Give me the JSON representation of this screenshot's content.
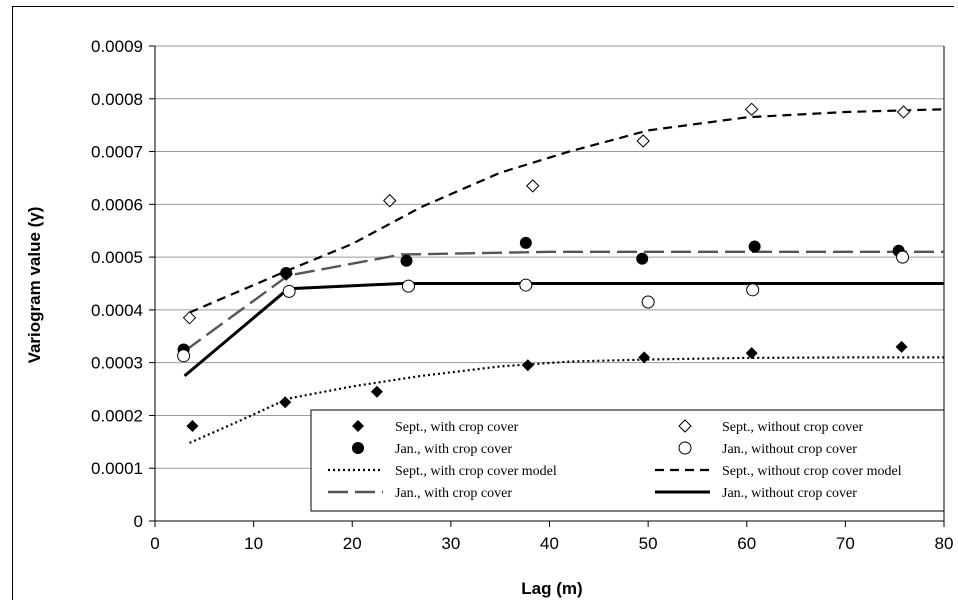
{
  "chart_data": {
    "type": "scatter",
    "title": "",
    "xlabel": "Lag (m)",
    "ylabel": "Variogram value (γ)",
    "xlim": [
      0,
      80
    ],
    "ylim": [
      0,
      0.0009
    ],
    "xticks": [
      "0",
      "10",
      "20",
      "30",
      "40",
      "50",
      "60",
      "70",
      "80"
    ],
    "yticks": [
      "0",
      "0.0001",
      "0.0002",
      "0.0003",
      "0.0004",
      "0.0005",
      "0.0006",
      "0.0007",
      "0.0008",
      "0.0009"
    ],
    "grid": "horizontal",
    "legend_position": "bottom-right",
    "series": [
      {
        "name": "Sept., with crop cover",
        "kind": "points",
        "marker": "filled-diamond",
        "x": [
          3.8,
          13.2,
          22.5,
          37.8,
          49.6,
          60.5,
          75.7
        ],
        "y": [
          0.00018,
          0.000225,
          0.000245,
          0.000295,
          0.00031,
          0.000318,
          0.00033
        ]
      },
      {
        "name": "Sept., without crop cover",
        "kind": "points",
        "marker": "open-diamond",
        "x": [
          3.5,
          13.3,
          23.8,
          38.3,
          49.5,
          60.5,
          75.9
        ],
        "y": [
          0.000385,
          0.000468,
          0.000607,
          0.000635,
          0.00072,
          0.00078,
          0.000775
        ]
      },
      {
        "name": "Jan., with crop cover",
        "kind": "points",
        "marker": "filled-circle",
        "x": [
          2.9,
          13.3,
          25.5,
          37.6,
          49.4,
          60.8,
          75.4
        ],
        "y": [
          0.000325,
          0.00047,
          0.000493,
          0.000527,
          0.000497,
          0.00052,
          0.000512
        ]
      },
      {
        "name": "Jan., without crop cover",
        "kind": "points",
        "marker": "open-circle",
        "x": [
          2.9,
          13.6,
          25.7,
          37.6,
          50,
          60.6,
          75.8
        ],
        "y": [
          0.000313,
          0.000435,
          0.000445,
          0.000447,
          0.000415,
          0.000438,
          0.0005
        ]
      },
      {
        "name": "Sept., with crop cover model",
        "kind": "line",
        "dash": "dotted",
        "x": [
          3.5,
          8,
          13.5,
          20,
          27,
          35,
          42,
          50,
          60,
          70,
          80
        ],
        "y": [
          0.000148,
          0.000185,
          0.000232,
          0.000255,
          0.000275,
          0.000293,
          0.000302,
          0.000306,
          0.000309,
          0.00031,
          0.00031
        ]
      },
      {
        "name": "Sept., without crop cover model",
        "kind": "line",
        "dash": "dashed",
        "x": [
          3.5,
          13.5,
          20,
          27,
          35,
          42,
          50,
          60,
          70,
          80
        ],
        "y": [
          0.000395,
          0.000475,
          0.000525,
          0.000595,
          0.00066,
          0.0007,
          0.00074,
          0.000765,
          0.000775,
          0.00078
        ]
      },
      {
        "name": "Jan., with crop cover",
        "kind": "line",
        "dash": "long-dash",
        "x": [
          3,
          13.5,
          25,
          40,
          80
        ],
        "y": [
          0.000322,
          0.000465,
          0.000505,
          0.00051,
          0.00051
        ]
      },
      {
        "name": "Jan., without crop cover",
        "kind": "line",
        "dash": "solid",
        "x": [
          3,
          13.5,
          25,
          40,
          80
        ],
        "y": [
          0.000275,
          0.00044,
          0.00045,
          0.00045,
          0.00045
        ]
      }
    ],
    "colors": {
      "gridline": "#9a9a9a",
      "jan_with_crop_line": "#555555",
      "ink": "#000000"
    }
  }
}
